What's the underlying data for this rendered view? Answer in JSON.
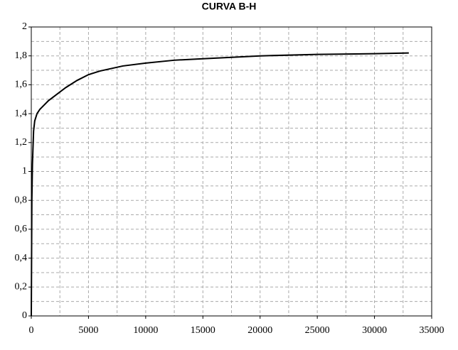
{
  "chart_data": {
    "type": "line",
    "title": "CURVA B-H",
    "x": [
      0,
      50,
      100,
      200,
      300,
      500,
      750,
      1000,
      1500,
      2000,
      2500,
      3000,
      4000,
      5000,
      6000,
      8000,
      10000,
      12500,
      15000,
      20000,
      25000,
      30000,
      33000
    ],
    "series": [
      {
        "name": "B-H",
        "color": "#000000",
        "values": [
          0,
          0.8,
          1.05,
          1.28,
          1.35,
          1.4,
          1.43,
          1.45,
          1.49,
          1.52,
          1.55,
          1.58,
          1.63,
          1.67,
          1.695,
          1.73,
          1.75,
          1.77,
          1.78,
          1.8,
          1.81,
          1.815,
          1.82
        ]
      }
    ],
    "xlim": [
      0,
      35000
    ],
    "xticks": [
      0,
      5000,
      10000,
      15000,
      20000,
      25000,
      30000,
      35000
    ],
    "ylim": [
      0,
      2
    ],
    "yticks": [
      0,
      {
        "value": 0.2,
        "label": "0,2"
      },
      {
        "value": 0.4,
        "label": "0,4"
      },
      {
        "value": 0.6,
        "label": "0,6"
      },
      {
        "value": 0.8,
        "label": "0,8"
      },
      1,
      {
        "value": 1.2,
        "label": "1,2"
      },
      {
        "value": 1.4,
        "label": "1,4"
      },
      {
        "value": 1.6,
        "label": "1,6"
      },
      {
        "value": 1.8,
        "label": "1,8"
      },
      2
    ],
    "grid": true
  }
}
